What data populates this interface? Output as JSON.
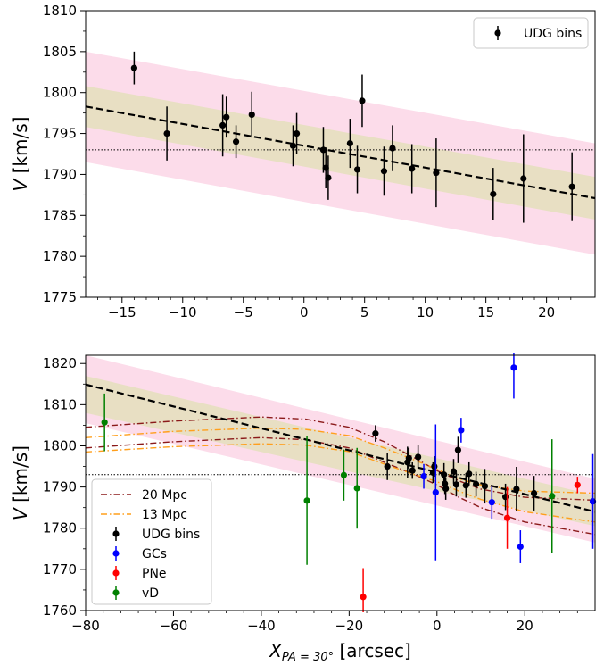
{
  "chart_data": [
    {
      "type": "scatter",
      "ylabel_main": "V",
      "ylabel_unit": "[km/s]",
      "xlim": [
        -18,
        24
      ],
      "ylim": [
        1775,
        1810
      ],
      "xticks": [
        -15,
        -10,
        -5,
        0,
        5,
        10,
        15,
        20
      ],
      "xtick_labels": [
        "−15",
        "−10",
        "−5",
        "0",
        "5",
        "10",
        "15",
        "20"
      ],
      "yticks": [
        1775,
        1780,
        1785,
        1790,
        1795,
        1800,
        1805,
        1810
      ],
      "ytick_labels": [
        "1775",
        "1780",
        "1785",
        "1790",
        "1795",
        "1800",
        "1805",
        "1810"
      ],
      "systemic_velocity": 1793,
      "fit_line": {
        "x": [
          -18,
          24
        ],
        "y": [
          1798.3,
          1787.1
        ]
      },
      "inner_band": {
        "x": [
          -18,
          24
        ],
        "lower": [
          1795.8,
          1784.5
        ],
        "upper": [
          1800.8,
          1789.7
        ],
        "color": "#e8dfc3"
      },
      "outer_band": {
        "x": [
          -18,
          24
        ],
        "lower": [
          1791.5,
          1780.2
        ],
        "upper": [
          1805.0,
          1793.8
        ],
        "color": "#fcdcea"
      },
      "legend": [
        {
          "label": "UDG bins",
          "color": "#000000"
        }
      ],
      "legend_position": "top-right",
      "series": [
        {
          "name": "UDG bins",
          "color": "#000000",
          "points": [
            {
              "x": -14.0,
              "y": 1803.0,
              "err": 2.0
            },
            {
              "x": -11.3,
              "y": 1795.0,
              "err": 3.3
            },
            {
              "x": -6.7,
              "y": 1796.0,
              "err": 3.8
            },
            {
              "x": -6.4,
              "y": 1797.0,
              "err": 2.5
            },
            {
              "x": -5.6,
              "y": 1794.0,
              "err": 2.0
            },
            {
              "x": -4.3,
              "y": 1797.3,
              "err": 2.8
            },
            {
              "x": -0.9,
              "y": 1793.5,
              "err": 2.5
            },
            {
              "x": -0.6,
              "y": 1795.0,
              "err": 2.5
            },
            {
              "x": 1.6,
              "y": 1793.0,
              "err": 2.8
            },
            {
              "x": 1.8,
              "y": 1790.8,
              "err": 2.5
            },
            {
              "x": 2.0,
              "y": 1789.6,
              "err": 2.7
            },
            {
              "x": 3.8,
              "y": 1793.8,
              "err": 3.0
            },
            {
              "x": 4.4,
              "y": 1790.6,
              "err": 2.9
            },
            {
              "x": 4.8,
              "y": 1799.0,
              "err": 3.2
            },
            {
              "x": 6.6,
              "y": 1790.4,
              "err": 3.0
            },
            {
              "x": 7.3,
              "y": 1793.2,
              "err": 2.8
            },
            {
              "x": 8.9,
              "y": 1790.7,
              "err": 3.0
            },
            {
              "x": 10.9,
              "y": 1790.2,
              "err": 4.2
            },
            {
              "x": 15.6,
              "y": 1787.6,
              "err": 3.2
            },
            {
              "x": 18.1,
              "y": 1789.5,
              "err": 5.4
            },
            {
              "x": 22.1,
              "y": 1788.5,
              "err": 4.2
            }
          ]
        }
      ]
    },
    {
      "type": "scatter",
      "ylabel_main": "V",
      "ylabel_unit": "[km/s]",
      "xlabel_main": "X",
      "xlabel_sub": "PA = 30°",
      "xlabel_unit": "[arcsec]",
      "xlim": [
        -80,
        36
      ],
      "ylim": [
        1760,
        1822
      ],
      "xticks": [
        -80,
        -60,
        -40,
        -20,
        0,
        20
      ],
      "xtick_labels": [
        "−80",
        "−60",
        "−40",
        "−20",
        "0",
        "20"
      ],
      "yticks": [
        1760,
        1770,
        1780,
        1790,
        1800,
        1810,
        1820
      ],
      "ytick_labels": [
        "1760",
        "1770",
        "1780",
        "1790",
        "1800",
        "1810",
        "1820"
      ],
      "systemic_velocity": 1793,
      "fit_line": {
        "x": [
          -80,
          36
        ],
        "y": [
          1814.9,
          1784.0
        ]
      },
      "inner_band": {
        "x": [
          -80,
          36
        ],
        "lower": [
          1808.0,
          1780.5
        ],
        "upper": [
          1817.0,
          1788.0
        ],
        "color": "#e8dfc3"
      },
      "outer_band": {
        "x": [
          -80,
          36
        ],
        "lower": [
          1805.5,
          1776.5
        ],
        "upper": [
          1822.0,
          1792.0
        ],
        "color": "#fcdcea"
      },
      "model_curves": [
        {
          "name": "20 Mpc",
          "color": "#8b1a1a",
          "dash": "dashdot",
          "upper": {
            "x": [
              -80,
              -60,
              -40,
              -30,
              -20,
              -12,
              -5,
              0,
              5,
              10,
              20,
              36
            ],
            "y": [
              1804.5,
              1806.0,
              1807.0,
              1806.5,
              1804.5,
              1801.0,
              1797.0,
              1794.0,
              1791.5,
              1789.5,
              1787.5,
              1786.8
            ]
          },
          "lower": {
            "x": [
              -80,
              -60,
              -40,
              -30,
              -20,
              -12,
              -5,
              0,
              5,
              10,
              20,
              36
            ],
            "y": [
              1799.5,
              1801.0,
              1802.0,
              1801.5,
              1799.5,
              1796.0,
              1793.0,
              1790.5,
              1787.5,
              1785.0,
              1781.5,
              1778.5
            ]
          }
        },
        {
          "name": "13 Mpc",
          "color": "#ff9f1c",
          "dash": "dashdot",
          "upper": {
            "x": [
              -80,
              -60,
              -40,
              -30,
              -20,
              -12,
              -5,
              0,
              5,
              10,
              20,
              36
            ],
            "y": [
              1802.0,
              1803.5,
              1804.3,
              1804.0,
              1802.5,
              1799.5,
              1796.5,
              1794.3,
              1792.0,
              1790.5,
              1789.0,
              1788.5
            ]
          },
          "lower": {
            "x": [
              -80,
              -60,
              -40,
              -30,
              -20,
              -12,
              -5,
              0,
              5,
              10,
              20,
              36
            ],
            "y": [
              1798.5,
              1799.8,
              1800.5,
              1800.2,
              1798.6,
              1795.6,
              1793.0,
              1791.3,
              1789.0,
              1787.0,
              1784.0,
              1781.5
            ]
          }
        }
      ],
      "legend": [
        {
          "label": "20 Mpc",
          "color": "#8b1a1a",
          "kind": "line"
        },
        {
          "label": "13 Mpc",
          "color": "#ff9f1c",
          "kind": "line"
        },
        {
          "label": "UDG bins",
          "color": "#000000",
          "kind": "point"
        },
        {
          "label": "GCs",
          "color": "#0000ff",
          "kind": "point"
        },
        {
          "label": "PNe",
          "color": "#ff0000",
          "kind": "point"
        },
        {
          "label": "vD",
          "color": "#008000",
          "kind": "point"
        }
      ],
      "legend_position": "bottom-left",
      "series": [
        {
          "name": "UDG bins",
          "color": "#000000",
          "points": [
            {
              "x": -14.0,
              "y": 1803.0,
              "err": 2.0
            },
            {
              "x": -11.3,
              "y": 1795.0,
              "err": 3.3
            },
            {
              "x": -6.7,
              "y": 1796.0,
              "err": 3.8
            },
            {
              "x": -6.4,
              "y": 1797.0,
              "err": 2.5
            },
            {
              "x": -5.6,
              "y": 1794.0,
              "err": 2.0
            },
            {
              "x": -4.3,
              "y": 1797.3,
              "err": 2.8
            },
            {
              "x": -0.9,
              "y": 1793.5,
              "err": 2.5
            },
            {
              "x": -0.6,
              "y": 1795.0,
              "err": 2.5
            },
            {
              "x": 1.6,
              "y": 1793.0,
              "err": 2.8
            },
            {
              "x": 1.8,
              "y": 1790.8,
              "err": 2.5
            },
            {
              "x": 2.0,
              "y": 1789.6,
              "err": 2.7
            },
            {
              "x": 3.8,
              "y": 1793.8,
              "err": 3.0
            },
            {
              "x": 4.4,
              "y": 1790.6,
              "err": 2.9
            },
            {
              "x": 4.8,
              "y": 1799.0,
              "err": 3.2
            },
            {
              "x": 6.6,
              "y": 1790.4,
              "err": 3.0
            },
            {
              "x": 7.3,
              "y": 1793.2,
              "err": 2.8
            },
            {
              "x": 8.9,
              "y": 1790.7,
              "err": 3.0
            },
            {
              "x": 10.9,
              "y": 1790.2,
              "err": 4.2
            },
            {
              "x": 15.6,
              "y": 1787.6,
              "err": 3.2
            },
            {
              "x": 18.1,
              "y": 1789.5,
              "err": 5.4
            },
            {
              "x": 22.1,
              "y": 1788.5,
              "err": 4.2
            }
          ]
        },
        {
          "name": "GCs",
          "color": "#0000ff",
          "points": [
            {
              "x": -3.0,
              "y": 1792.6,
              "err": 3.0
            },
            {
              "x": -0.3,
              "y": 1788.7,
              "err": 16.5
            },
            {
              "x": 5.5,
              "y": 1803.8,
              "err": 3.0
            },
            {
              "x": 12.5,
              "y": 1786.3,
              "err": 4.0
            },
            {
              "x": 17.5,
              "y": 1819.0,
              "err": 7.5
            },
            {
              "x": 19.0,
              "y": 1775.5,
              "err": 4.0
            },
            {
              "x": 35.5,
              "y": 1786.5,
              "err": 11.5
            }
          ]
        },
        {
          "name": "PNe",
          "color": "#ff0000",
          "points": [
            {
              "x": -16.8,
              "y": 1763.3,
              "err": 7.0
            },
            {
              "x": 16.0,
              "y": 1782.5,
              "err": 7.5
            },
            {
              "x": 32.0,
              "y": 1790.5,
              "err": 2.0
            }
          ]
        },
        {
          "name": "vD",
          "color": "#008000",
          "points": [
            {
              "x": -75.7,
              "y": 1805.7,
              "err": 7.0
            },
            {
              "x": -29.6,
              "y": 1786.7,
              "err": 15.6
            },
            {
              "x": -21.2,
              "y": 1792.9,
              "err": 6.2
            },
            {
              "x": -18.2,
              "y": 1789.7,
              "err": 9.8
            },
            {
              "x": 26.2,
              "y": 1787.8,
              "err": 13.8
            }
          ]
        }
      ]
    }
  ]
}
